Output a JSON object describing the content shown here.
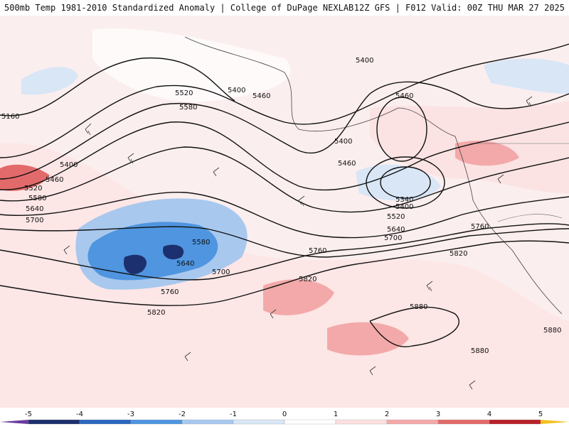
{
  "header": {
    "left": "500mb Temp 1981-2010 Standardized Anomaly | College of DuPage NEXLAB",
    "right": "12Z GFS | F012 Valid: 00Z THU MAR 27 2025"
  },
  "map": {
    "height_labels": [
      "5160",
      "5400",
      "5460",
      "5520",
      "5580",
      "5640",
      "5700",
      "5760",
      "5820",
      "5880",
      "5340"
    ],
    "low_center_label": "5340"
  },
  "colorbar": {
    "ticks": [
      "-5",
      "-4",
      "-3",
      "-2",
      "-1",
      "0",
      "1",
      "2",
      "3",
      "4",
      "5"
    ],
    "colors": [
      "#6a3aa0",
      "#1c2f6e",
      "#2c66c0",
      "#4f95e0",
      "#a8c8ee",
      "#d8e6f6",
      "#ffffff",
      "#fce0e0",
      "#f3a9a9",
      "#e36a6a",
      "#b8202a",
      "#7a0d14",
      "#f2c020"
    ]
  }
}
